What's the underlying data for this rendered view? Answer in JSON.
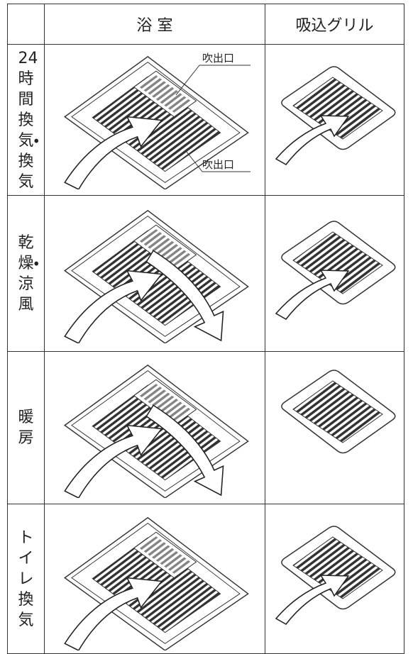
{
  "header": {
    "bathroom": "浴 室",
    "intake": "吸込グリル"
  },
  "rows": [
    {
      "label": "24時間換気・換気",
      "callouts": [
        "吹出口",
        "吹出口"
      ]
    },
    {
      "label": "乾燥・涼風"
    },
    {
      "label": "暖房"
    },
    {
      "label": "トイレ換気"
    }
  ]
}
